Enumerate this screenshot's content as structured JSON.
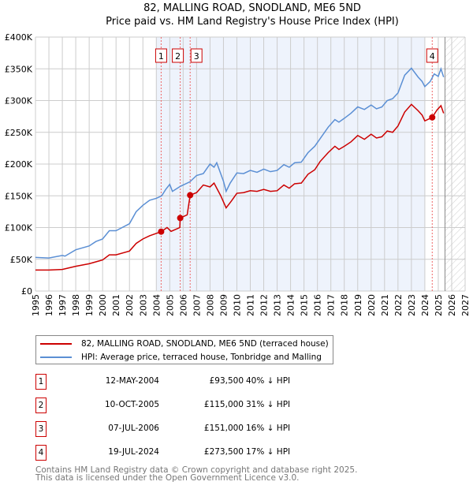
{
  "title_line1": "82, MALLING ROAD, SNODLAND, ME6 5ND",
  "title_line2": "Price paid vs. HM Land Registry's House Price Index (HPI)",
  "chart_data": {
    "type": "line",
    "xlim": [
      1995,
      2027
    ],
    "ylim": [
      0,
      400000
    ],
    "y_ticks": [
      {
        "v": 0,
        "label": "£0"
      },
      {
        "v": 50000,
        "label": "£50K"
      },
      {
        "v": 100000,
        "label": "£100K"
      },
      {
        "v": 150000,
        "label": "£150K"
      },
      {
        "v": 200000,
        "label": "£200K"
      },
      {
        "v": 250000,
        "label": "£250K"
      },
      {
        "v": 300000,
        "label": "£300K"
      },
      {
        "v": 350000,
        "label": "£350K"
      },
      {
        "v": 400000,
        "label": "£400K"
      }
    ],
    "x_ticks": [
      "1995",
      "1996",
      "1997",
      "1998",
      "1999",
      "2000",
      "2001",
      "2002",
      "2003",
      "2004",
      "2005",
      "2006",
      "2007",
      "2008",
      "2009",
      "2010",
      "2011",
      "2012",
      "2013",
      "2014",
      "2015",
      "2016",
      "2017",
      "2018",
      "2019",
      "2020",
      "2021",
      "2022",
      "2023",
      "2024",
      "2025",
      "2026",
      "2027"
    ],
    "shaded_range": [
      2004,
      2024
    ],
    "forecast_hatch_from": 2025.5,
    "series": [
      {
        "name": "82, MALLING ROAD, SNODLAND, ME6 5ND (terraced house)",
        "color": "#cc0000",
        "x": [
          1995,
          1996,
          1997,
          1998,
          1999,
          2000,
          2000.5,
          2001,
          2002,
          2002.5,
          2003,
          2003.5,
          2004.37,
          2004.8,
          2005.1,
          2005.75,
          2005.78,
          2006.3,
          2006.52,
          2007,
          2007.5,
          2008,
          2008.3,
          2008.8,
          2009.2,
          2009.6,
          2010,
          2010.5,
          2011,
          2011.5,
          2012,
          2012.5,
          2013,
          2013.5,
          2013.9,
          2014.3,
          2014.8,
          2015.3,
          2015.8,
          2016.2,
          2016.8,
          2017.3,
          2017.6,
          2018,
          2018.5,
          2019,
          2019.5,
          2020,
          2020.4,
          2020.8,
          2021.2,
          2021.6,
          2022,
          2022.5,
          2023,
          2023.5,
          2023.8,
          2024,
          2024.55,
          2024.9,
          2025.2,
          2025.4
        ],
        "y": [
          33000,
          33000,
          34000,
          39000,
          43000,
          49000,
          57000,
          57000,
          63000,
          75000,
          82000,
          87000,
          93500,
          100000,
          94000,
          100000,
          115000,
          120000,
          151000,
          155000,
          167000,
          164000,
          170000,
          150000,
          131000,
          142000,
          154000,
          155000,
          158000,
          157000,
          160000,
          157000,
          158000,
          167000,
          162000,
          169000,
          170000,
          184000,
          191000,
          204000,
          218000,
          228000,
          223000,
          228000,
          235000,
          245000,
          239000,
          247000,
          241000,
          243000,
          252000,
          250000,
          260000,
          282000,
          294000,
          284000,
          277000,
          268000,
          273500,
          285000,
          292000,
          280000
        ]
      },
      {
        "name": "HPI: Average price, terraced house, Tonbridge and Malling",
        "color": "#5b8fd4",
        "x": [
          1995,
          1996,
          1997,
          1997.2,
          1998,
          1999,
          1999.5,
          2000,
          2000.5,
          2001,
          2002,
          2002.5,
          2003,
          2003.5,
          2004,
          2004.4,
          2004.7,
          2005,
          2005.2,
          2005.8,
          2006.5,
          2007,
          2007.5,
          2008,
          2008.3,
          2008.5,
          2009,
          2009.2,
          2009.5,
          2010,
          2010.5,
          2011,
          2011.5,
          2012,
          2012.5,
          2013,
          2013.5,
          2013.9,
          2014.3,
          2014.8,
          2015.3,
          2015.8,
          2016.2,
          2016.8,
          2017.3,
          2017.6,
          2018,
          2018.5,
          2019,
          2019.5,
          2020,
          2020.4,
          2020.8,
          2021.2,
          2021.6,
          2022,
          2022.5,
          2023,
          2023.5,
          2023.8,
          2024,
          2024.4,
          2024.7,
          2025,
          2025.2,
          2025.4
        ],
        "y": [
          53000,
          52000,
          56000,
          55000,
          65000,
          71000,
          78000,
          82000,
          95000,
          95000,
          106000,
          125000,
          135000,
          143000,
          146000,
          150000,
          160000,
          168000,
          157000,
          165000,
          172000,
          182000,
          185000,
          200000,
          195000,
          202000,
          173000,
          157000,
          170000,
          186000,
          185000,
          190000,
          187000,
          192000,
          188000,
          190000,
          199000,
          195000,
          202000,
          203000,
          218000,
          228000,
          240000,
          258000,
          270000,
          266000,
          272000,
          280000,
          290000,
          286000,
          293000,
          287000,
          290000,
          300000,
          303000,
          312000,
          340000,
          351000,
          337000,
          330000,
          322000,
          330000,
          342000,
          338000,
          350000,
          337000
        ]
      }
    ],
    "sales": [
      {
        "n": "1",
        "date": "12-MAY-2004",
        "x": 2004.36,
        "price": "£93,500",
        "value": 93500,
        "hpi": "40% ↓ HPI"
      },
      {
        "n": "2",
        "date": "10-OCT-2005",
        "x": 2005.78,
        "price": "£115,000",
        "value": 115000,
        "hpi": "31% ↓ HPI"
      },
      {
        "n": "3",
        "date": "07-JUL-2006",
        "x": 2006.52,
        "price": "£151,000",
        "value": 151000,
        "hpi": "16% ↓ HPI"
      },
      {
        "n": "4",
        "date": "19-JUL-2024",
        "x": 2024.55,
        "price": "£273,500",
        "value": 273500,
        "hpi": "17% ↓ HPI"
      }
    ]
  },
  "footer_line1": "Contains HM Land Registry data © Crown copyright and database right 2025.",
  "footer_line2": "This data is licensed under the Open Government Licence v3.0."
}
